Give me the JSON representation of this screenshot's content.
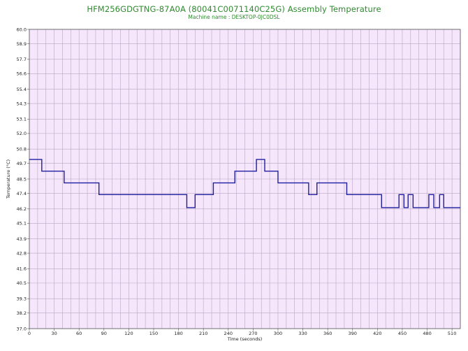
{
  "chart_data": {
    "type": "line",
    "title": "HFM256GDGTNG-87A0A (80041C0071140C25G) Assembly Temperature",
    "subtitle": "Machine name : DESKTOP-0JC0DSL",
    "xlabel": "Time (seconds)",
    "ylabel": "Temperature (°C)",
    "xlim": [
      0,
      520
    ],
    "ylim": [
      37.0,
      60.0
    ],
    "x_ticks": [
      0,
      30,
      60,
      90,
      120,
      150,
      180,
      210,
      240,
      270,
      300,
      330,
      360,
      390,
      420,
      450,
      480,
      510
    ],
    "y_ticks": [
      "37.0",
      "38.2",
      "39.3",
      "40.5",
      "41.6",
      "42.8",
      "43.9",
      "45.1",
      "46.2",
      "47.4",
      "48.5",
      "49.7",
      "50.8",
      "52.0",
      "53.1",
      "54.3",
      "55.4",
      "56.6",
      "57.7",
      "58.9",
      "60.0"
    ],
    "grid": true,
    "colors": {
      "plot_bg": "#f5e6fb",
      "grid": "#b9a6c4",
      "line": "#1f1f9f",
      "title": "#2e8b2e"
    },
    "series": [
      {
        "step": true,
        "x": [
          0,
          15,
          42,
          84,
          190,
          200,
          222,
          248,
          274,
          284,
          300,
          337,
          347,
          383,
          425,
          446,
          452,
          457,
          463,
          482,
          488,
          495,
          500,
          520
        ],
        "values": [
          50.0,
          49.1,
          48.2,
          47.3,
          46.3,
          47.3,
          48.2,
          49.1,
          50.0,
          49.1,
          48.2,
          47.3,
          48.2,
          47.3,
          46.3,
          47.3,
          46.3,
          47.3,
          46.3,
          47.3,
          46.3,
          47.3,
          46.3,
          46.3
        ]
      }
    ]
  }
}
